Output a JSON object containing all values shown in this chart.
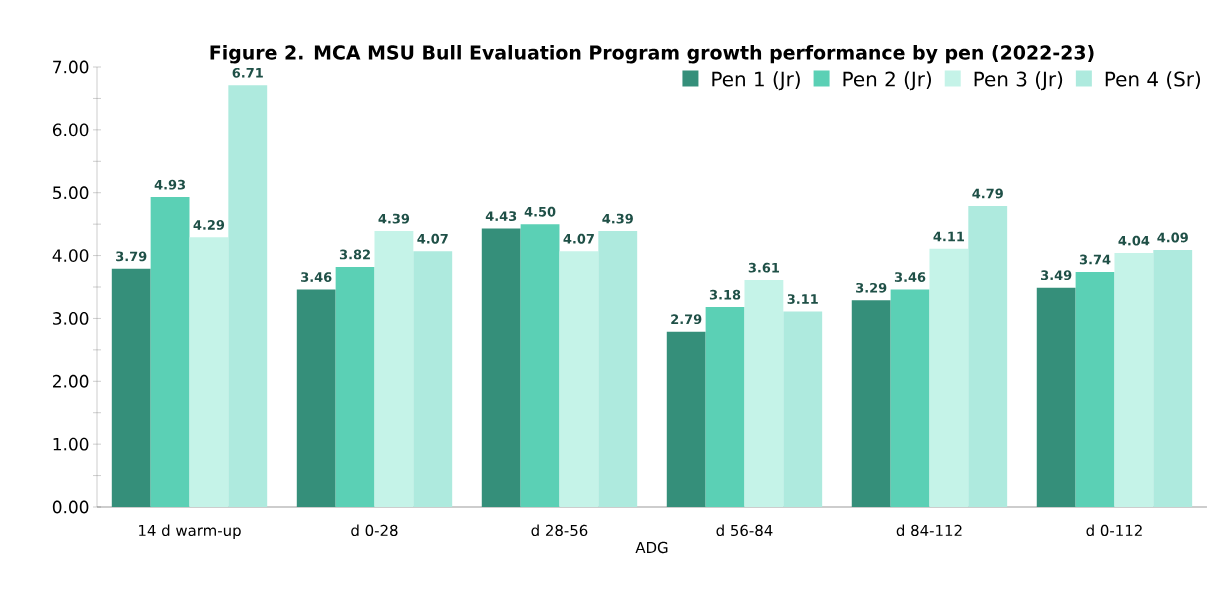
{
  "chart_data": {
    "type": "bar",
    "title": "Figure 2. MCA MSU Bull Evaluation Program growth performance by pen (2022-23)",
    "xlabel": "ADG",
    "categories": [
      "14 d warm-up",
      "d 0-28",
      "d 28-56",
      "d 56-84",
      "d 84-112",
      "d 0-112"
    ],
    "series": [
      {
        "name": "Pen 1 (Jr)",
        "color": "#358f7a",
        "values": [
          3.79,
          3.46,
          4.43,
          2.79,
          3.29,
          3.49
        ],
        "value_labels": [
          "3.79",
          "3.46",
          "4.43",
          "2.79",
          "3.29",
          "3.49"
        ]
      },
      {
        "name": "Pen 2 (Jr)",
        "color": "#5bd0b5",
        "values": [
          4.93,
          3.82,
          4.5,
          3.18,
          3.46,
          3.74
        ],
        "value_labels": [
          "4.93",
          "3.82",
          "4.50",
          "3.18",
          "3.46",
          "3.74"
        ]
      },
      {
        "name": "Pen 3 (Jr)",
        "color": "#c5f3e8",
        "values": [
          4.29,
          4.39,
          4.07,
          3.61,
          4.11,
          4.04
        ],
        "value_labels": [
          "4.29",
          "4.39",
          "4.07",
          "3.61",
          "4.11",
          "4.04"
        ]
      },
      {
        "name": "Pen 4 (Sr)",
        "color": "#aeeade",
        "values": [
          6.71,
          4.07,
          4.39,
          3.11,
          4.79,
          4.09
        ],
        "value_labels": [
          "6.71",
          "4.07",
          "4.39",
          "3.11",
          "4.79",
          "4.09"
        ]
      }
    ],
    "ylim": [
      0,
      7
    ],
    "yticks": [
      {
        "value": 0,
        "label": "0.00"
      },
      {
        "value": 0.5,
        "label": null
      },
      {
        "value": 1,
        "label": "1.00"
      },
      {
        "value": 1.5,
        "label": null
      },
      {
        "value": 2,
        "label": "2.00"
      },
      {
        "value": 2.5,
        "label": null
      },
      {
        "value": 3,
        "label": "3.00"
      },
      {
        "value": 3.5,
        "label": null
      },
      {
        "value": 4,
        "label": "4.00"
      },
      {
        "value": 4.5,
        "label": null
      },
      {
        "value": 5,
        "label": "5.00"
      },
      {
        "value": 5.5,
        "label": null
      },
      {
        "value": 6,
        "label": "6.00"
      },
      {
        "value": 6.5,
        "label": null
      },
      {
        "value": 7,
        "label": "7.00"
      }
    ],
    "legend": "top right"
  }
}
